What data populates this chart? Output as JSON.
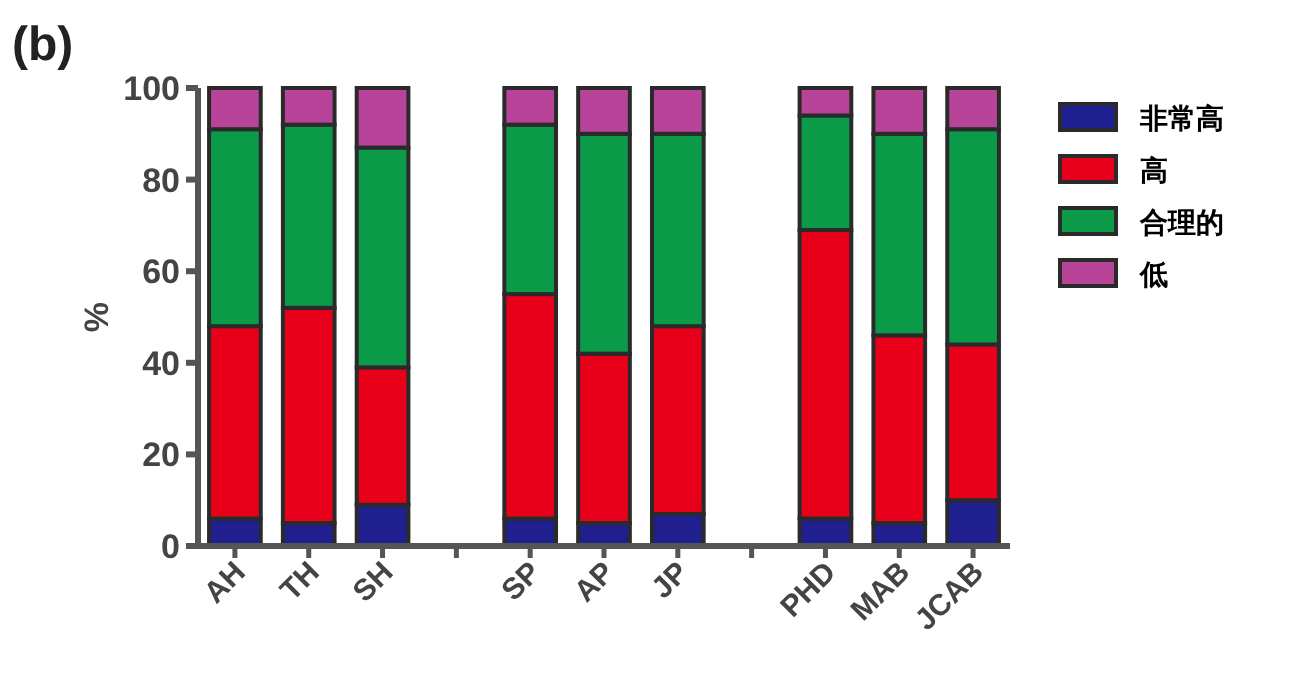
{
  "chart_data": {
    "type": "bar",
    "stacked": true,
    "title": "(b)",
    "ylabel": "%",
    "categories": [
      "AH",
      "TH",
      "SH",
      null,
      "SP",
      "AP",
      "JP",
      null,
      "PHD",
      "MAB",
      "JCAB"
    ],
    "series": [
      {
        "name": "非常高",
        "color": "#1f1f8f",
        "values": [
          6,
          5,
          9,
          null,
          6,
          5,
          7,
          null,
          6,
          5,
          10
        ]
      },
      {
        "name": "高",
        "color": "#e8001a",
        "values": [
          42,
          47,
          30,
          null,
          49,
          37,
          41,
          null,
          63,
          41,
          34
        ]
      },
      {
        "name": "合理的",
        "color": "#0a9a48",
        "values": [
          43,
          40,
          48,
          null,
          37,
          48,
          42,
          null,
          25,
          44,
          47
        ]
      },
      {
        "name": "低",
        "color": "#b8449a",
        "values": [
          9,
          8,
          13,
          null,
          8,
          10,
          10,
          null,
          6,
          10,
          9
        ]
      }
    ],
    "ylim": [
      0,
      100
    ],
    "yticks": [
      0,
      20,
      40,
      60,
      80,
      100
    ],
    "grid": false,
    "legend": "right"
  }
}
